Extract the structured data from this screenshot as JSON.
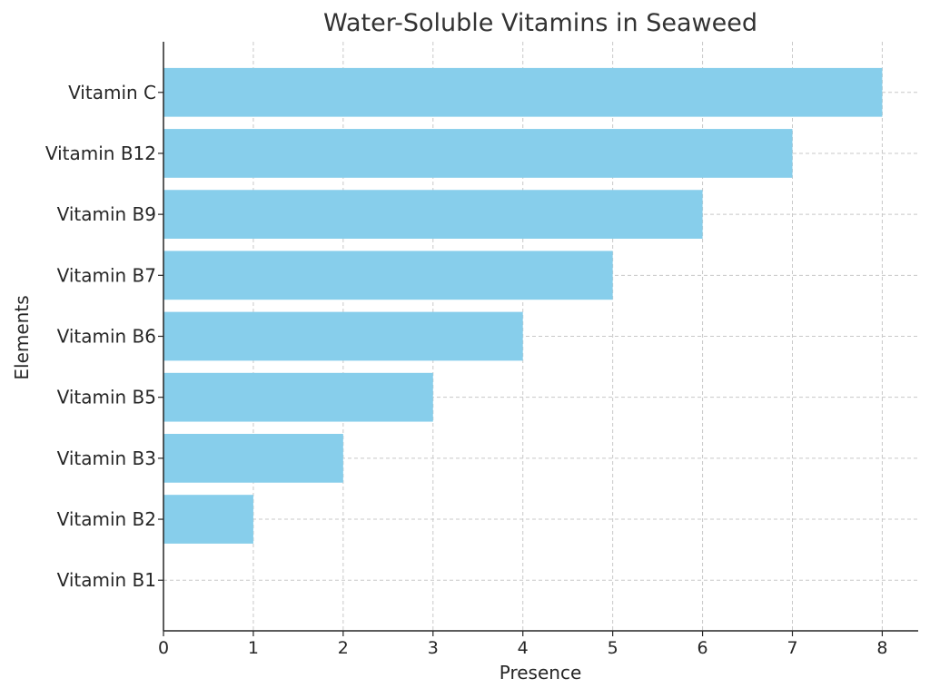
{
  "chart_data": {
    "type": "bar",
    "orientation": "horizontal",
    "title": "Water-Soluble Vitamins in Seaweed",
    "xlabel": "Presence",
    "ylabel": "Elements",
    "categories": [
      "Vitamin B1",
      "Vitamin B2",
      "Vitamin B3",
      "Vitamin B5",
      "Vitamin B6",
      "Vitamin B7",
      "Vitamin B9",
      "Vitamin B12",
      "Vitamin C"
    ],
    "values": [
      0,
      1,
      2,
      3,
      4,
      5,
      6,
      7,
      8
    ],
    "xlim": [
      0,
      8.4
    ],
    "xticks": [
      "0",
      "1",
      "2",
      "3",
      "4",
      "5",
      "6",
      "7",
      "8"
    ],
    "grid": true,
    "bar_color": "#87CEEB"
  }
}
